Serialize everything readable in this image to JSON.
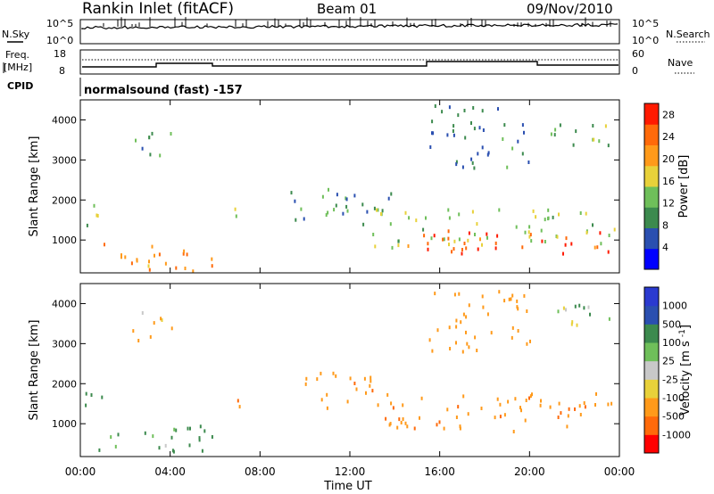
{
  "header": {
    "station": "Rankin Inlet (fitACF)",
    "beam": "Beam 01",
    "date": "09/Nov/2010"
  },
  "noise_panel": {
    "left_label": "N.Sky",
    "right_label": "N.Search",
    "left_ticks": [
      "10^5",
      "10^0"
    ],
    "right_ticks": [
      "10^5",
      "10^0"
    ]
  },
  "freq_panel": {
    "left_label_line1": "Freq.",
    "left_label_line2": "[MHz]",
    "right_label": "Nave",
    "left_ticks": [
      "18",
      "8"
    ],
    "right_ticks": [
      "60",
      "0"
    ]
  },
  "cpid_panel": {
    "label": "CPID",
    "text": "normalsound (fast) -157"
  },
  "time_axis": {
    "title": "Time UT",
    "ticks": [
      "00:00",
      "04:00",
      "08:00",
      "12:00",
      "16:00",
      "20:00",
      "00:00"
    ]
  },
  "colors": {
    "power_scale": [
      "#0000ff",
      "#2a4fb0",
      "#3c8a4e",
      "#6fbf5a",
      "#e8d13a",
      "#ff9a1a",
      "#ff6a0a",
      "#ff1a00"
    ],
    "velocity_scale": [
      "#ff0000",
      "#ff6a0a",
      "#ff9a1a",
      "#e8d13a",
      "#c8c8c8",
      "#6fbf5a",
      "#3c8a4e",
      "#2a4fb0",
      "#2a3ad0"
    ]
  },
  "chart_data": [
    {
      "type": "heatmap",
      "title": "Power",
      "ylabel": "Slant Range [km]",
      "xlabel": "",
      "xlim_hours": [
        0,
        24
      ],
      "ylim": [
        180,
        4500
      ],
      "yticks": [
        1000,
        2000,
        3000,
        4000
      ],
      "colorbar_label": "Power [dB]",
      "colorbar_ticks": [
        4,
        8,
        12,
        16,
        20,
        24,
        28
      ],
      "colorbar_range": [
        0,
        30
      ],
      "scatter_blobs": [
        {
          "t": [
            0.0,
            1.0
          ],
          "r": [
            1300,
            2000
          ],
          "v": 13
        },
        {
          "t": [
            0.8,
            6.0
          ],
          "r": [
            250,
            1000
          ],
          "v": 22
        },
        {
          "t": [
            2.3,
            4.3
          ],
          "r": [
            3100,
            3850
          ],
          "v": 11
        },
        {
          "t": [
            6.6,
            7.3
          ],
          "r": [
            1400,
            2000
          ],
          "v": 14
        },
        {
          "t": [
            9.0,
            14.0
          ],
          "r": [
            1400,
            2300
          ],
          "v": 9
        },
        {
          "t": [
            13.0,
            23.8
          ],
          "r": [
            800,
            1800
          ],
          "v": 15
        },
        {
          "t": [
            15.0,
            23.8
          ],
          "r": [
            700,
            1300
          ],
          "v": 27
        },
        {
          "t": [
            15.5,
            20.0
          ],
          "r": [
            2800,
            4400
          ],
          "v": 8
        },
        {
          "t": [
            20.5,
            23.7
          ],
          "r": [
            3300,
            4000
          ],
          "v": 13
        }
      ]
    },
    {
      "type": "heatmap",
      "title": "Velocity",
      "ylabel": "Slant Range [km]",
      "xlabel": "Time UT",
      "xlim_hours": [
        0,
        24
      ],
      "ylim": [
        180,
        4500
      ],
      "yticks": [
        1000,
        2000,
        3000,
        4000
      ],
      "colorbar_label": "Velocity [m s^-1]",
      "colorbar_ticks": [
        "1000",
        "500",
        "100",
        "25",
        "-25",
        "-100",
        "-500",
        "-1000"
      ],
      "colorbar_range": [
        -1000,
        1000
      ],
      "scatter_blobs": [
        {
          "t": [
            0.0,
            1.0
          ],
          "r": [
            1300,
            2000
          ],
          "v": 300
        },
        {
          "t": [
            0.8,
            6.0
          ],
          "r": [
            250,
            1000
          ],
          "v": 200
        },
        {
          "t": [
            2.3,
            4.3
          ],
          "r": [
            3100,
            3850
          ],
          "v": -200
        },
        {
          "t": [
            6.6,
            7.3
          ],
          "r": [
            1400,
            2000
          ],
          "v": -400
        },
        {
          "t": [
            10.0,
            14.0
          ],
          "r": [
            1400,
            2300
          ],
          "v": -350
        },
        {
          "t": [
            13.0,
            23.8
          ],
          "r": [
            800,
            1800
          ],
          "v": -400
        },
        {
          "t": [
            15.5,
            20.0
          ],
          "r": [
            2800,
            4400
          ],
          "v": -300
        },
        {
          "t": [
            20.5,
            23.7
          ],
          "r": [
            3300,
            4000
          ],
          "v": 100
        }
      ]
    }
  ]
}
